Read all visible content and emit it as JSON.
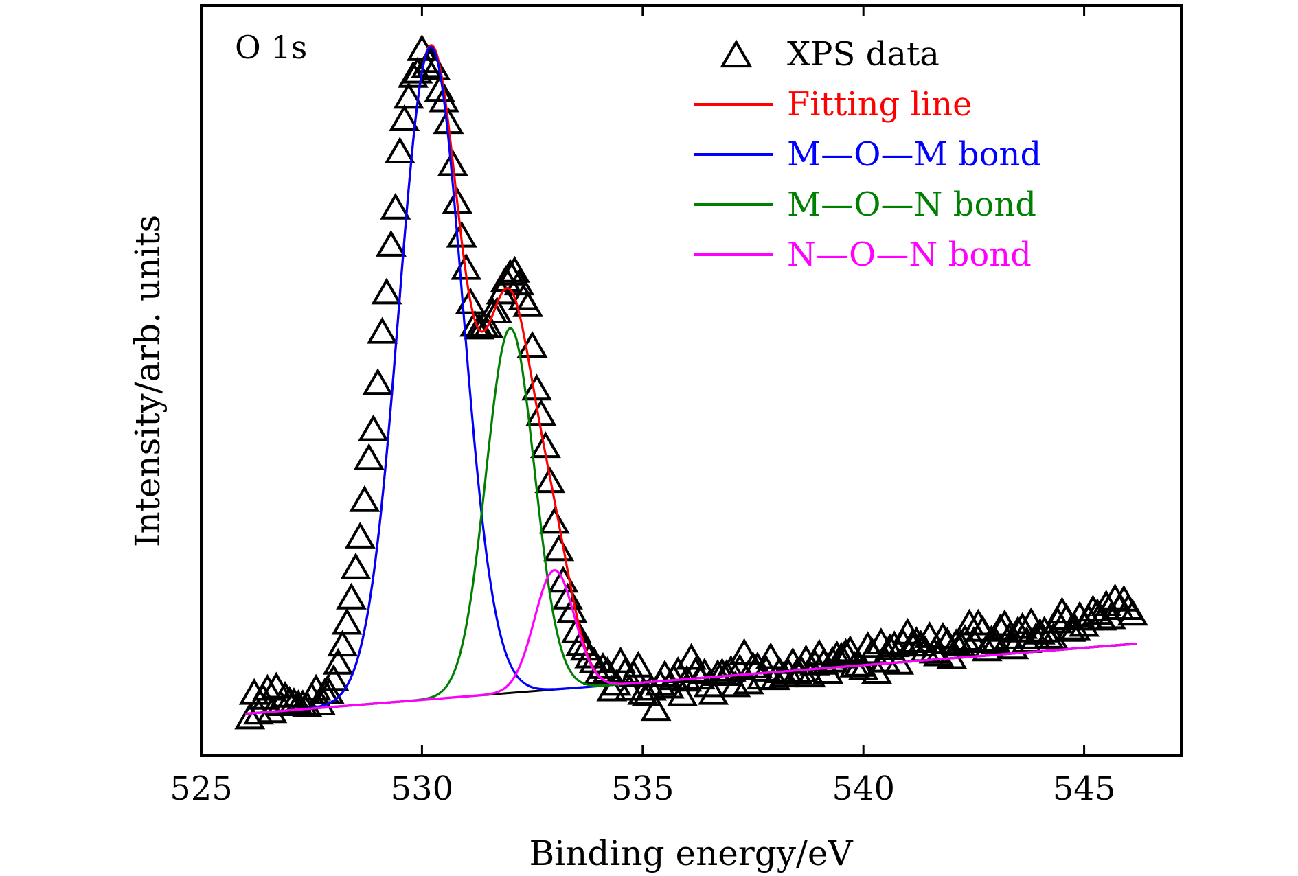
{
  "chart_data": {
    "type": "line",
    "panel_label": "O 1s",
    "xlabel": "Binding energy/eV",
    "ylabel": "Intensity/arb. units",
    "xlim": [
      525,
      547.2
    ],
    "ylim": [
      0,
      1.07
    ],
    "xticks": [
      525,
      530,
      535,
      540,
      545
    ],
    "yticks_shown": false,
    "grid": false,
    "legend_position": "top-right",
    "legend": [
      {
        "label": "XPS data",
        "marker": "open-triangle",
        "color": "#000000"
      },
      {
        "label": "Fitting line",
        "color": "#ff0000"
      },
      {
        "label": "M—O—M bond",
        "color": "#0000ff"
      },
      {
        "label": "M—O—N bond",
        "color": "#008000"
      },
      {
        "label": "N—O—N bond",
        "color": "#ff00ff"
      }
    ],
    "baseline": {
      "x": [
        526,
        546.2
      ],
      "y": [
        0.06,
        0.16
      ]
    },
    "components": [
      {
        "name": "M—O—M bond",
        "center": 530.2,
        "amplitude": 0.93,
        "sigma": 0.72
      },
      {
        "name": "M—O—N bond",
        "center": 532.0,
        "amplitude": 0.52,
        "sigma": 0.55
      },
      {
        "name": "N—O—N bond",
        "center": 533.0,
        "amplitude": 0.17,
        "sigma": 0.45
      }
    ],
    "series": [
      {
        "name": "XPS data",
        "type": "scatter",
        "x": [
          526.1,
          526.2,
          526.3,
          526.4,
          526.5,
          526.6,
          526.7,
          526.8,
          526.9,
          527.0,
          527.1,
          527.2,
          527.3,
          527.4,
          527.5,
          527.6,
          527.7,
          527.8,
          527.9,
          528.0,
          528.1,
          528.2,
          528.3,
          528.4,
          528.5,
          528.6,
          528.7,
          528.8,
          528.9,
          529.0,
          529.1,
          529.2,
          529.3,
          529.4,
          529.5,
          529.6,
          529.7,
          529.8,
          529.9,
          530.0,
          530.1,
          530.2,
          530.3,
          530.4,
          530.5,
          530.6,
          530.7,
          530.8,
          530.9,
          531.0,
          531.1,
          531.2,
          531.3,
          531.4,
          531.5,
          531.6,
          531.7,
          531.8,
          531.9,
          532.0,
          532.1,
          532.2,
          532.3,
          532.4,
          532.5,
          532.6,
          532.7,
          532.8,
          532.9,
          533.0,
          533.1,
          533.2,
          533.3,
          533.4,
          533.5,
          533.6,
          533.7,
          533.8,
          533.9,
          534.0,
          534.1,
          534.2,
          534.3,
          534.4,
          534.5,
          534.6,
          534.7,
          534.8,
          534.9,
          535.0,
          535.1,
          535.2,
          535.3,
          535.4,
          535.5,
          535.6,
          535.7,
          535.8,
          535.9,
          536.0,
          536.1,
          536.2,
          536.3,
          536.4,
          536.5,
          536.6,
          536.7,
          536.8,
          536.9,
          537.0,
          537.1,
          537.2,
          537.3,
          537.4,
          537.5,
          537.6,
          537.7,
          537.8,
          537.9,
          538.0,
          538.1,
          538.2,
          538.3,
          538.4,
          538.5,
          538.6,
          538.7,
          538.8,
          538.9,
          539.0,
          539.1,
          539.2,
          539.3,
          539.4,
          539.5,
          539.6,
          539.7,
          539.8,
          539.9,
          540.0,
          540.1,
          540.2,
          540.3,
          540.4,
          540.5,
          540.6,
          540.7,
          540.8,
          540.9,
          541.0,
          541.1,
          541.2,
          541.3,
          541.4,
          541.5,
          541.6,
          541.7,
          541.8,
          541.9,
          542.0,
          542.1,
          542.2,
          542.3,
          542.4,
          542.5,
          542.6,
          542.7,
          542.8,
          542.9,
          543.0,
          543.1,
          543.2,
          543.3,
          543.4,
          543.5,
          543.6,
          543.7,
          543.8,
          543.9,
          544.0,
          544.1,
          544.2,
          544.3,
          544.4,
          544.5,
          544.6,
          544.7,
          544.8,
          544.9,
          545.0,
          545.1,
          545.2,
          545.3,
          545.4,
          545.5,
          545.6,
          545.7,
          545.8,
          545.9,
          546.0,
          546.1
        ],
        "y": [
          0.052,
          0.087,
          0.059,
          0.08,
          0.093,
          0.061,
          0.096,
          0.071,
          0.083,
          0.076,
          0.074,
          0.071,
          0.071,
          0.069,
          0.082,
          0.093,
          0.072,
          0.088,
          0.088,
          0.107,
          0.13,
          0.156,
          0.187,
          0.223,
          0.266,
          0.31,
          0.362,
          0.422,
          0.463,
          0.529,
          0.602,
          0.658,
          0.726,
          0.779,
          0.859,
          0.905,
          0.937,
          0.967,
          0.973,
          1.005,
          0.981,
          0.988,
          0.978,
          0.947,
          0.932,
          0.901,
          0.841,
          0.787,
          0.739,
          0.693,
          0.644,
          0.612,
          0.608,
          0.611,
          0.61,
          0.631,
          0.631,
          0.658,
          0.676,
          0.685,
          0.689,
          0.671,
          0.65,
          0.64,
          0.582,
          0.521,
          0.485,
          0.439,
          0.389,
          0.331,
          0.292,
          0.247,
          0.223,
          0.204,
          0.175,
          0.157,
          0.15,
          0.139,
          0.132,
          0.115,
          0.124,
          0.118,
          0.092,
          0.1,
          0.132,
          0.117,
          0.093,
          0.113,
          0.126,
          0.087,
          0.085,
          0.093,
          0.064,
          0.1,
          0.113,
          0.096,
          0.108,
          0.118,
          0.085,
          0.106,
          0.137,
          0.118,
          0.109,
          0.116,
          0.098,
          0.087,
          0.114,
          0.116,
          0.114,
          0.12,
          0.098,
          0.122,
          0.144,
          0.102,
          0.125,
          0.125,
          0.109,
          0.12,
          0.138,
          0.108,
          0.118,
          0.112,
          0.116,
          0.131,
          0.117,
          0.119,
          0.135,
          0.112,
          0.129,
          0.143,
          0.13,
          0.117,
          0.133,
          0.141,
          0.139,
          0.144,
          0.148,
          0.126,
          0.127,
          0.122,
          0.154,
          0.145,
          0.117,
          0.159,
          0.133,
          0.151,
          0.155,
          0.13,
          0.158,
          0.173,
          0.156,
          0.161,
          0.156,
          0.148,
          0.168,
          0.146,
          0.142,
          0.167,
          0.16,
          0.138,
          0.158,
          0.156,
          0.164,
          0.186,
          0.161,
          0.186,
          0.177,
          0.149,
          0.163,
          0.16,
          0.179,
          0.185,
          0.166,
          0.152,
          0.176,
          0.181,
          0.161,
          0.188,
          0.166,
          0.173,
          0.176,
          0.167,
          0.166,
          0.189,
          0.203,
          0.194,
          0.177,
          0.179,
          0.197,
          0.184,
          0.193,
          0.206,
          0.201,
          0.193,
          0.213,
          0.195,
          0.222,
          0.208,
          0.22,
          0.208,
          0.2
        ]
      },
      {
        "name": "Fitting line",
        "type": "line",
        "fn": "sum",
        "color": "#ff0000"
      },
      {
        "name": "M—O—M bond",
        "type": "line",
        "fn": "component",
        "component": 0,
        "color": "#0000ff"
      },
      {
        "name": "M—O—N bond",
        "type": "line",
        "fn": "component",
        "component": 1,
        "color": "#008000"
      },
      {
        "name": "N—O—N bond",
        "type": "line",
        "fn": "component",
        "component": 2,
        "color": "#ff00ff"
      }
    ]
  }
}
